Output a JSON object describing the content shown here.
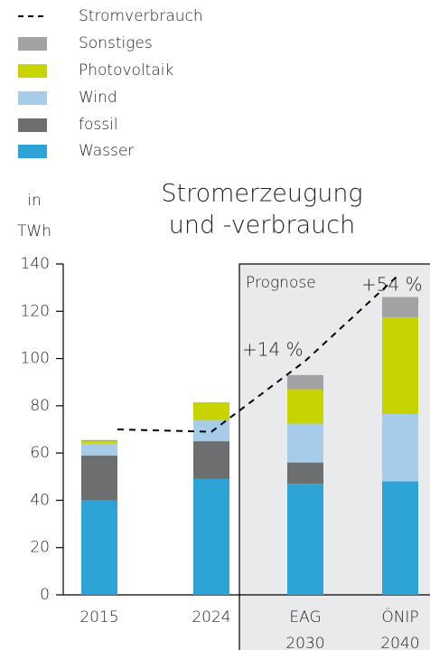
{
  "chart_data": {
    "type": "stacked_bar_line",
    "title": [
      "Stromerzeugung",
      "und -verbrauch"
    ],
    "y_label": [
      "in",
      "TWh"
    ],
    "categories": [
      [
        "2015"
      ],
      [
        "2024"
      ],
      [
        "EAG",
        "2030"
      ],
      [
        "ÖNIP",
        "2040"
      ]
    ],
    "series": [
      {
        "name": "Wasser",
        "color": "#2ea3d5",
        "values": [
          40,
          49,
          47,
          48
        ]
      },
      {
        "name": "fossil",
        "color": "#6d6e70",
        "values": [
          19,
          16,
          9,
          0
        ]
      },
      {
        "name": "Wind",
        "color": "#a6cce9",
        "values": [
          5,
          9,
          16.5,
          28.5
        ]
      },
      {
        "name": "Photovoltaik",
        "color": "#c8d400",
        "values": [
          1,
          7.5,
          14.5,
          41
        ]
      },
      {
        "name": "Sonstiges",
        "color": "#a0a2a4",
        "values": [
          0.5,
          0,
          6,
          8.5
        ]
      }
    ],
    "line": {
      "name": "Stromverbrauch",
      "color": "#000000",
      "values": [
        70,
        69,
        99,
        136
      ]
    },
    "forecast_label": "Prognose",
    "annotations": [
      "+14 %",
      "+54 %"
    ],
    "ylim": [
      0,
      140
    ],
    "yticks": [
      0,
      20,
      40,
      60,
      80,
      100,
      120,
      140
    ]
  }
}
